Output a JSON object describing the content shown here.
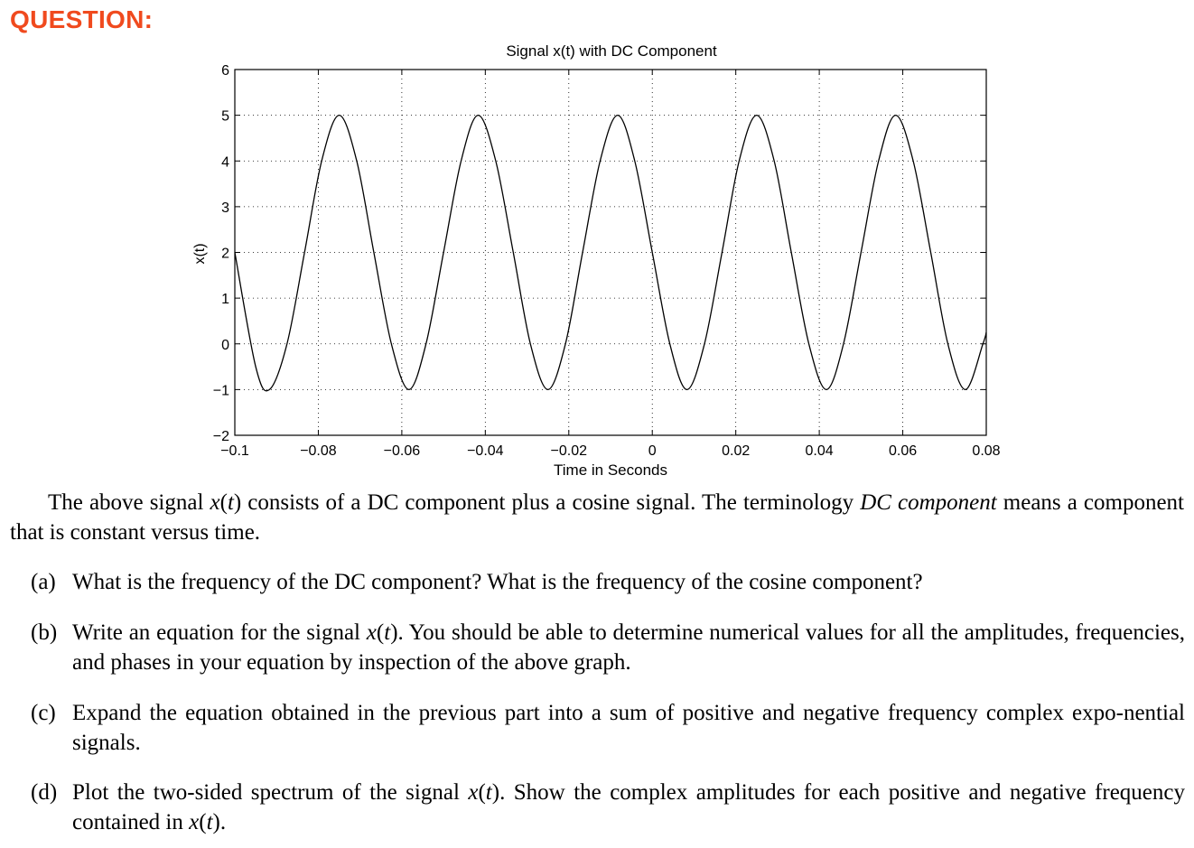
{
  "heading": "QUESTION:",
  "chart_data": {
    "type": "line",
    "title": "Signal x(t) with DC Component",
    "xlabel": "Time in Seconds",
    "ylabel": "x(t)",
    "xlim": [
      -0.1,
      0.08
    ],
    "ylim": [
      -2,
      6
    ],
    "x_ticks": [
      -0.1,
      -0.08,
      -0.06,
      -0.04,
      -0.02,
      0,
      0.02,
      0.04,
      0.06,
      0.08
    ],
    "x_tick_labels": [
      "−0.1",
      "−0.08",
      "−0.06",
      "−0.04",
      "−0.02",
      "0",
      "0.02",
      "0.04",
      "0.06",
      "0.08"
    ],
    "y_ticks": [
      -2,
      -1,
      0,
      1,
      2,
      3,
      4,
      5,
      6
    ],
    "y_tick_labels": [
      "−2",
      "−1",
      "0",
      "1",
      "2",
      "3",
      "4",
      "5",
      "6"
    ],
    "grid": true,
    "series": [
      {
        "x": [
          -0.1,
          -0.095,
          -0.0917,
          -0.0875,
          -0.0833,
          -0.0792,
          -0.075,
          -0.0708,
          -0.0667,
          -0.0625,
          -0.0583,
          -0.0542,
          -0.05,
          -0.0458,
          -0.0417,
          -0.0375,
          -0.0333,
          -0.0292,
          -0.025,
          -0.0208,
          -0.0167,
          -0.0125,
          -0.0083,
          -0.0042,
          0,
          0.0042,
          0.0083,
          0.0125,
          0.0167,
          0.0208,
          0.025,
          0.0292,
          0.0333,
          0.0375,
          0.0417,
          0.0458,
          0.05,
          0.0542,
          0.0583,
          0.0625,
          0.0667,
          0.0708,
          0.075,
          0.0792,
          0.08
        ],
        "y": [
          2.0,
          -0.5,
          -1.0,
          0.0,
          2.0,
          4.0,
          5.0,
          4.0,
          2.0,
          0.0,
          -1.0,
          0.0,
          2.0,
          4.0,
          5.0,
          4.0,
          2.0,
          0.0,
          -1.0,
          0.0,
          2.0,
          4.0,
          5.0,
          4.0,
          2.0,
          0.0,
          -1.0,
          0.0,
          2.0,
          4.0,
          5.0,
          4.0,
          2.0,
          0.0,
          -1.0,
          0.0,
          2.0,
          4.0,
          5.0,
          4.0,
          2.0,
          0.0,
          -1.0,
          0.0,
          0.25
        ]
      }
    ]
  },
  "intro": {
    "p1": "The above signal ",
    "var1": "x",
    "p2": "(",
    "var2": "t",
    "p3": ") consists of a DC component plus a cosine signal. The terminology ",
    "emph": "DC component",
    "p4": " means a component that is constant versus time."
  },
  "items": {
    "a": {
      "label": "(a)",
      "text": "What is the frequency of the DC component? What is the frequency of the cosine component?"
    },
    "b": {
      "label": "(b)",
      "t1": "Write an equation for the signal ",
      "var": "x",
      "paren_open": "(",
      "tvar": "t",
      "t2": "). You should be able to determine numerical values for all the amplitudes, frequencies, and phases in your equation by inspection of the above graph."
    },
    "c": {
      "label": "(c)",
      "text": "Expand the equation obtained in the previous part into a sum of positive and negative frequency complex expo-nential signals."
    },
    "d": {
      "label": "(d)",
      "t1": "Plot the two-sided spectrum of the signal ",
      "var": "x",
      "paren_open": "(",
      "tvar": "t",
      "t2": ").  Show the complex amplitudes for each positive and negative frequency contained in ",
      "var2": "x",
      "paren_open2": "(",
      "tvar2": "t",
      "t3": ")."
    }
  }
}
